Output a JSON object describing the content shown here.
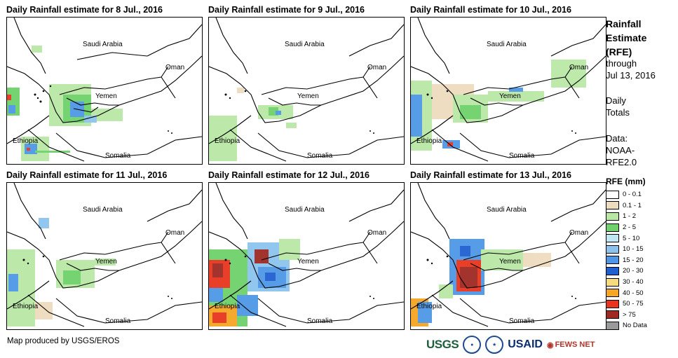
{
  "panels": [
    {
      "title": "Daily Rainfall estimate for 8 Jul., 2016"
    },
    {
      "title": "Daily Rainfall estimate for 9 Jul., 2016"
    },
    {
      "title": "Daily Rainfall estimate for 10 Jul., 2016"
    },
    {
      "title": "Daily Rainfall estimate for 11 Jul., 2016"
    },
    {
      "title": "Daily Rainfall estimate for 12 Jul., 2016"
    },
    {
      "title": "Daily Rainfall estimate for 13 Jul., 2016"
    }
  ],
  "map_labels": {
    "saudi_arabia": "Saudi Arabia",
    "oman": "Oman",
    "yemen": "Yemen",
    "ethiopia": "Ethiopia",
    "somalia": "Somalia"
  },
  "sidebar": {
    "title_line1": "Rainfall",
    "title_line2": "Estimate",
    "title_line3": "(RFE)",
    "through": "through",
    "date": "Jul 13, 2016",
    "daily": "Daily",
    "totals": "Totals",
    "data_label": "Data:",
    "source1": "NOAA-",
    "source2": "RFE2.0"
  },
  "legend": {
    "title": "RFE (mm)",
    "items": [
      {
        "label": "0 - 0.1",
        "color": "#ffffff"
      },
      {
        "label": "0.1 - 1",
        "color": "#eedcbe"
      },
      {
        "label": "1 - 2",
        "color": "#b9e8a5"
      },
      {
        "label": "2 - 5",
        "color": "#6fd16b"
      },
      {
        "label": "5 - 10",
        "color": "#bfe8f5"
      },
      {
        "label": "10 - 15",
        "color": "#8cc3ee"
      },
      {
        "label": "15 - 20",
        "color": "#4f97e6"
      },
      {
        "label": "20 - 30",
        "color": "#1f5fd0"
      },
      {
        "label": "30 - 40",
        "color": "#f7dc7e"
      },
      {
        "label": "40 - 50",
        "color": "#f5a623"
      },
      {
        "label": "50 - 75",
        "color": "#e8341c"
      },
      {
        "label": "> 75",
        "color": "#9e2a22"
      },
      {
        "label": "No Data",
        "color": "#9a9a9a"
      }
    ]
  },
  "footer": {
    "credit": "Map produced by USGS/EROS"
  },
  "logos": {
    "usgs": "USGS",
    "usaid": "USAID",
    "fews": "FEWS NET"
  }
}
